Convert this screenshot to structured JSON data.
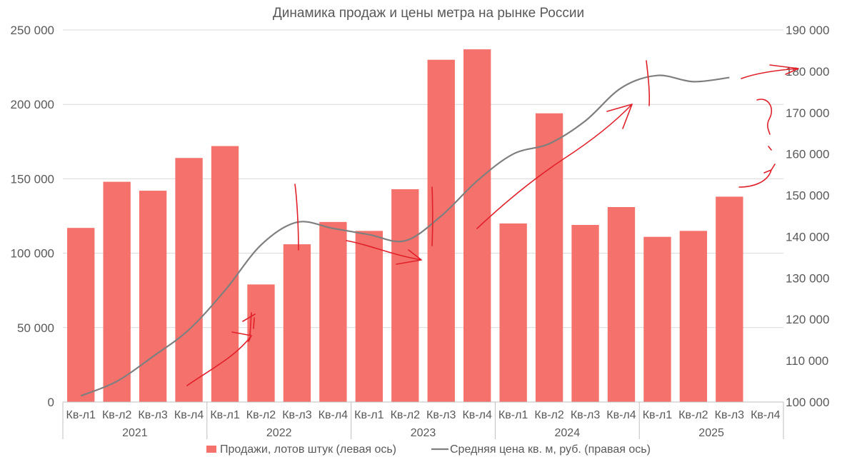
{
  "chart_data": {
    "type": "bar",
    "title": "Динамика продаж и цены метра на рынке России",
    "years": [
      "2021",
      "2022",
      "2023",
      "2024",
      "2025"
    ],
    "quarters": [
      "Кв-л1",
      "Кв-л2",
      "Кв-л3",
      "Кв-л4"
    ],
    "categories": [
      "2021 Кв-л1",
      "2021 Кв-л2",
      "2021 Кв-л3",
      "2021 Кв-л4",
      "2022 Кв-л1",
      "2022 Кв-л2",
      "2022 Кв-л3",
      "2022 Кв-л4",
      "2023 Кв-л1",
      "2023 Кв-л2",
      "2023 Кв-л3",
      "2023 Кв-л4",
      "2024 Кв-л1",
      "2024 Кв-л2",
      "2024 Кв-л3",
      "2024 Кв-л4",
      "2025 Кв-л1",
      "2025 Кв-л2",
      "2025 Кв-л3",
      "2025 Кв-л4"
    ],
    "series": [
      {
        "name": "Продажи, лотов штук (левая ось)",
        "type": "bar",
        "axis": "left",
        "color": "#f4726b",
        "values": [
          117000,
          148000,
          142000,
          164000,
          172000,
          79000,
          106000,
          121000,
          115000,
          143000,
          230000,
          237000,
          120000,
          194000,
          119000,
          131000,
          111000,
          115000,
          138000,
          null
        ]
      },
      {
        "name": "Средняя цена кв. м, руб. (правая ось)",
        "type": "line",
        "axis": "right",
        "color": "#7f7f7f",
        "values": [
          101500,
          105000,
          111000,
          117500,
          127000,
          138000,
          143500,
          142000,
          140500,
          139000,
          145000,
          153500,
          160000,
          162500,
          168000,
          176000,
          179000,
          177500,
          178500,
          null
        ]
      }
    ],
    "left_axis": {
      "min": 0,
      "max": 250000,
      "step": 50000,
      "tick_labels": [
        "0",
        "50 000",
        "100 000",
        "150 000",
        "200 000",
        "250 000"
      ]
    },
    "right_axis": {
      "min": 100000,
      "max": 190000,
      "step": 10000,
      "tick_labels": [
        "100 000",
        "110 000",
        "120 000",
        "130 000",
        "140 000",
        "150 000",
        "160 000",
        "170 000",
        "180 000",
        "190 000"
      ]
    },
    "grid": true,
    "legend_position": "bottom",
    "annotations": "hand-drawn red arrows and marks"
  }
}
